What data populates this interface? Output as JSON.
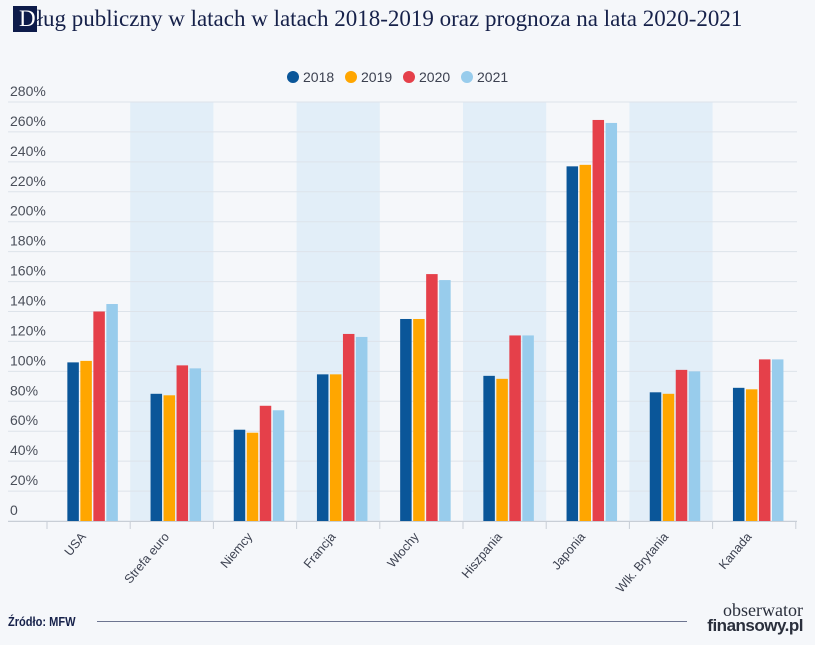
{
  "chart_data": {
    "type": "bar",
    "title_first_letter": "D",
    "title_rest": "ług publiczny w latach w latach 2018-2019 oraz prognoza na lata 2020-2021",
    "categories": [
      "USA",
      "Strefa euro",
      "Niemcy",
      "Francja",
      "Włochy",
      "Hiszpania",
      "Japonia",
      "Wlk. Brytania",
      "Kanada"
    ],
    "series": [
      {
        "name": "2018",
        "color": "#0a5699",
        "values": [
          106,
          85,
          61,
          98,
          135,
          97,
          237,
          86,
          89
        ]
      },
      {
        "name": "2019",
        "color": "#ffa600",
        "values": [
          107,
          84,
          59,
          98,
          135,
          95,
          238,
          85,
          88
        ]
      },
      {
        "name": "2020",
        "color": "#e5404a",
        "values": [
          140,
          104,
          77,
          125,
          165,
          124,
          268,
          101,
          108
        ]
      },
      {
        "name": "2021",
        "color": "#98ccec",
        "values": [
          145,
          102,
          74,
          123,
          161,
          124,
          266,
          100,
          108
        ]
      }
    ],
    "yticks": [
      "0",
      "20%",
      "40%",
      "60%",
      "80%",
      "100%",
      "120%",
      "140%",
      "160%",
      "180%",
      "200%",
      "220%",
      "240%",
      "260%",
      "280%"
    ],
    "ylim": [
      0,
      280
    ],
    "grid": true,
    "legend_position": "top-center",
    "band_color": "#e2eef8"
  },
  "footer": {
    "source": "Źródło: MFW",
    "logo_line1": "obserwator",
    "logo_line2": "finansowy.pl"
  }
}
